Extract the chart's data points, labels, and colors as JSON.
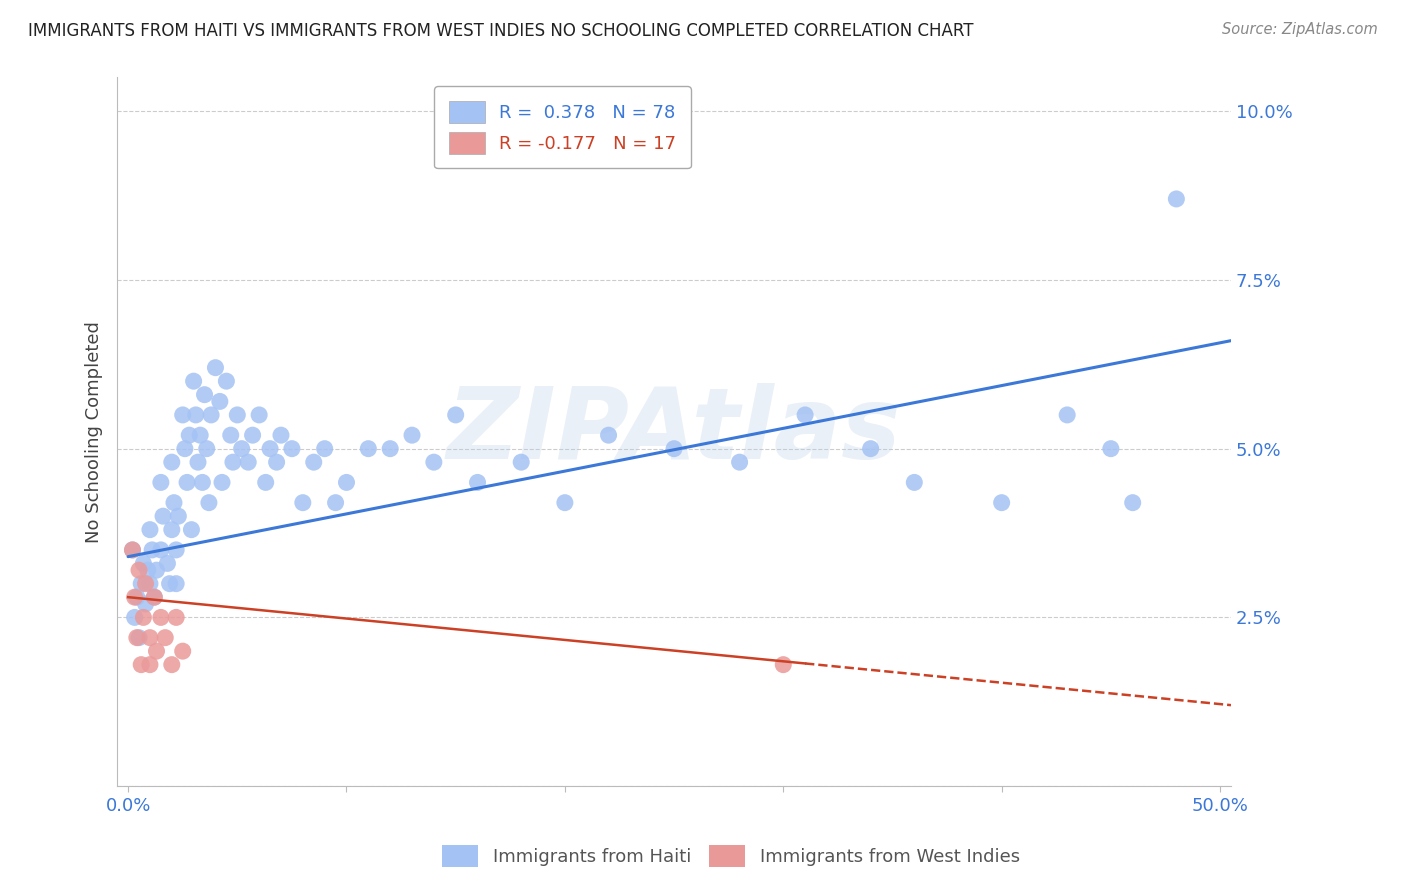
{
  "title": "IMMIGRANTS FROM HAITI VS IMMIGRANTS FROM WEST INDIES NO SCHOOLING COMPLETED CORRELATION CHART",
  "source": "Source: ZipAtlas.com",
  "ylabel": "No Schooling Completed",
  "yticks": [
    0.0,
    0.025,
    0.05,
    0.075,
    0.1
  ],
  "ytick_labels": [
    "",
    "2.5%",
    "5.0%",
    "7.5%",
    "10.0%"
  ],
  "xticks": [
    0.0,
    0.1,
    0.2,
    0.3,
    0.4,
    0.5
  ],
  "xlim": [
    -0.005,
    0.505
  ],
  "ylim": [
    0.0,
    0.105
  ],
  "haiti_R": 0.378,
  "haiti_N": 78,
  "wi_R": -0.177,
  "wi_N": 17,
  "haiti_color": "#a4c2f4",
  "wi_color": "#ea9999",
  "trend_haiti_color": "#3c78d8",
  "trend_wi_color": "#cc4125",
  "watermark": "ZIPAtlas",
  "legend_haiti_label": "Immigrants from Haiti",
  "legend_wi_label": "Immigrants from West Indies",
  "haiti_x": [
    0.002,
    0.003,
    0.004,
    0.005,
    0.006,
    0.007,
    0.008,
    0.009,
    0.01,
    0.01,
    0.011,
    0.012,
    0.013,
    0.015,
    0.015,
    0.016,
    0.018,
    0.019,
    0.02,
    0.02,
    0.021,
    0.022,
    0.022,
    0.023,
    0.025,
    0.026,
    0.027,
    0.028,
    0.029,
    0.03,
    0.031,
    0.032,
    0.033,
    0.034,
    0.035,
    0.036,
    0.037,
    0.038,
    0.04,
    0.042,
    0.043,
    0.045,
    0.047,
    0.048,
    0.05,
    0.052,
    0.055,
    0.057,
    0.06,
    0.063,
    0.065,
    0.068,
    0.07,
    0.075,
    0.08,
    0.085,
    0.09,
    0.095,
    0.1,
    0.11,
    0.12,
    0.13,
    0.14,
    0.15,
    0.16,
    0.18,
    0.2,
    0.22,
    0.25,
    0.28,
    0.31,
    0.34,
    0.36,
    0.4,
    0.43,
    0.45,
    0.46,
    0.48
  ],
  "haiti_y": [
    0.035,
    0.025,
    0.028,
    0.022,
    0.03,
    0.033,
    0.027,
    0.032,
    0.038,
    0.03,
    0.035,
    0.028,
    0.032,
    0.045,
    0.035,
    0.04,
    0.033,
    0.03,
    0.048,
    0.038,
    0.042,
    0.035,
    0.03,
    0.04,
    0.055,
    0.05,
    0.045,
    0.052,
    0.038,
    0.06,
    0.055,
    0.048,
    0.052,
    0.045,
    0.058,
    0.05,
    0.042,
    0.055,
    0.062,
    0.057,
    0.045,
    0.06,
    0.052,
    0.048,
    0.055,
    0.05,
    0.048,
    0.052,
    0.055,
    0.045,
    0.05,
    0.048,
    0.052,
    0.05,
    0.042,
    0.048,
    0.05,
    0.042,
    0.045,
    0.05,
    0.05,
    0.052,
    0.048,
    0.055,
    0.045,
    0.048,
    0.042,
    0.052,
    0.05,
    0.048,
    0.055,
    0.05,
    0.045,
    0.042,
    0.055,
    0.05,
    0.042,
    0.087
  ],
  "wi_x": [
    0.002,
    0.003,
    0.004,
    0.005,
    0.006,
    0.007,
    0.008,
    0.01,
    0.01,
    0.012,
    0.013,
    0.015,
    0.017,
    0.02,
    0.022,
    0.025,
    0.3
  ],
  "wi_y": [
    0.035,
    0.028,
    0.022,
    0.032,
    0.018,
    0.025,
    0.03,
    0.022,
    0.018,
    0.028,
    0.02,
    0.025,
    0.022,
    0.018,
    0.025,
    0.02,
    0.018
  ],
  "haiti_trend_x0": 0.0,
  "haiti_trend_y0": 0.034,
  "haiti_trend_x1": 0.505,
  "haiti_trend_y1": 0.066,
  "wi_trend_x0": 0.0,
  "wi_trend_y0": 0.028,
  "wi_trend_x1": 0.505,
  "wi_trend_y1": 0.012
}
